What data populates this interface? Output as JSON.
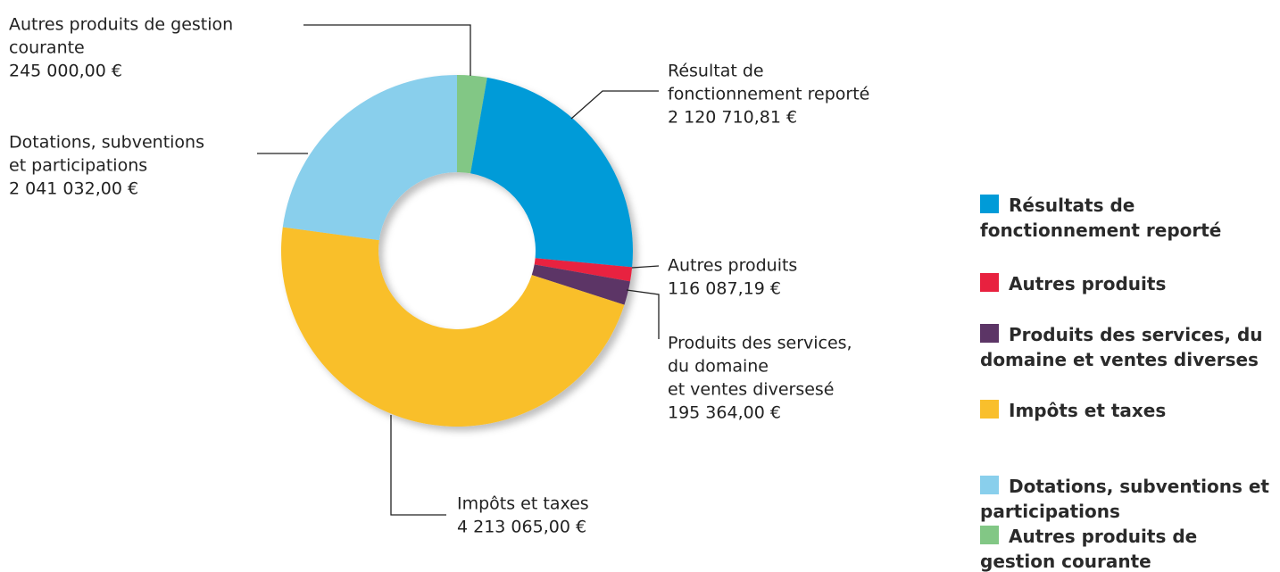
{
  "chart_data": {
    "type": "donut",
    "categories": [
      "Autres produits de gestion courante",
      "Résultats de fonctionnement reporté",
      "Autres produits",
      "Produits des services, du domaine et ventes diverses",
      "Impôts et taxes",
      "Dotations, subventions et participations"
    ],
    "values": [
      245000.0,
      2120710.81,
      116087.19,
      195364.0,
      4213065.0,
      2041032.0
    ],
    "value_labels": [
      "245 000,00 €",
      "2 120 710,81 €",
      "116 087,19 €",
      "195 364,00 €",
      "4 213 065,00 €",
      "2 041 032,00 €"
    ],
    "colors": [
      "#82c785",
      "#009bd8",
      "#e8213f",
      "#5c3566",
      "#f9bf2c",
      "#89cfec"
    ],
    "labels": [
      [
        "Autres produits de gestion",
        "courante"
      ],
      [
        "Résultat de",
        "fonctionnement reporté"
      ],
      [
        "Autres produits"
      ],
      [
        "Produits des services,",
        "du domaine",
        "et ventes diversesé"
      ],
      [
        "Impôts et taxes"
      ],
      [
        "Dotations, subventions",
        "et participations"
      ]
    ]
  }
}
